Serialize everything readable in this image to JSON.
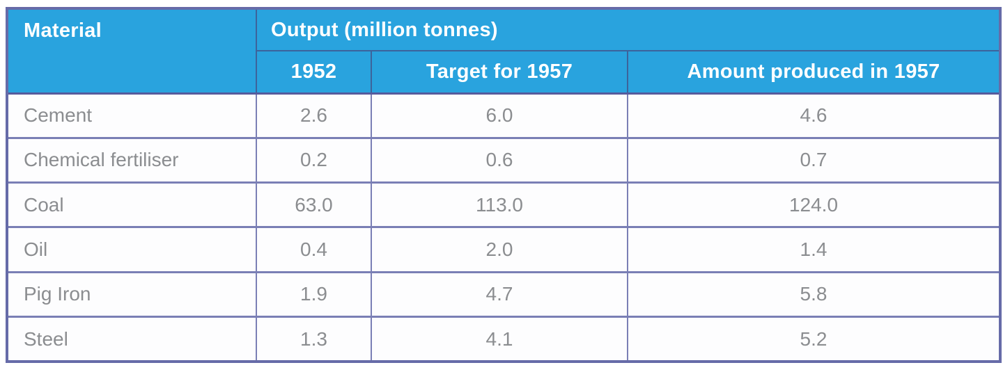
{
  "table": {
    "header": {
      "material": "Material",
      "output_group": "Output (million tonnes)",
      "col_1952": "1952",
      "col_target": "Target for 1957",
      "col_produced": "Amount produced in 1957"
    },
    "rows": [
      {
        "material": "Cement",
        "values": [
          "2.6",
          "6.0",
          "4.6"
        ]
      },
      {
        "material": "Chemical fertiliser",
        "values": [
          "0.2",
          "0.6",
          "0.7"
        ]
      },
      {
        "material": "Coal",
        "values": [
          "63.0",
          "113.0",
          "124.0"
        ]
      },
      {
        "material": "Oil",
        "values": [
          "0.4",
          "2.0",
          "1.4"
        ]
      },
      {
        "material": "Pig Iron",
        "values": [
          "1.9",
          "4.7",
          "5.8"
        ]
      },
      {
        "material": "Steel",
        "values": [
          "1.3",
          "4.1",
          "5.2"
        ]
      }
    ]
  },
  "colors": {
    "header_background": "#29a3de",
    "header_text": "#ffffff",
    "body_text": "#8b8d90",
    "border_outer": "#666ba8",
    "border_inner": "#7a7fb5",
    "border_header": "#3d639b"
  },
  "chart_data": {
    "type": "table",
    "title": "Output (million tonnes)",
    "row_header": "Material",
    "categories": [
      "Cement",
      "Chemical fertiliser",
      "Coal",
      "Oil",
      "Pig Iron",
      "Steel"
    ],
    "series": [
      {
        "name": "1952",
        "values": [
          2.6,
          0.2,
          63.0,
          0.4,
          1.9,
          1.3
        ]
      },
      {
        "name": "Target for 1957",
        "values": [
          6.0,
          0.6,
          113.0,
          2.0,
          4.7,
          4.1
        ]
      },
      {
        "name": "Amount produced in 1957",
        "values": [
          4.6,
          0.7,
          124.0,
          1.4,
          5.8,
          5.2
        ]
      }
    ]
  }
}
